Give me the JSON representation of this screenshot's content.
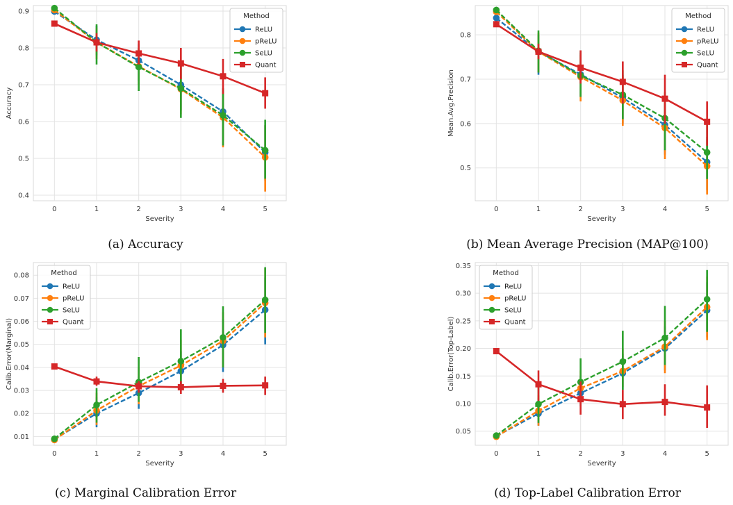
{
  "legend_title": "Method",
  "captions": {
    "a": "(a) Accuracy",
    "b": "(b) Mean Average Precision (MAP@100)",
    "c": "(c) Marginal Calibration Error",
    "d": "(d) Top-Label Calibration Error"
  },
  "colors": {
    "ReLU": "#1f77b4",
    "pReLU": "#ff7f0e",
    "SeLU": "#2ca02c",
    "Quant": "#d62728"
  },
  "chart_data": [
    {
      "type": "line",
      "panel": "a",
      "xlabel": "Severity",
      "ylabel": "Accuracy",
      "x": [
        0,
        1,
        2,
        3,
        4,
        5
      ],
      "ylim": [
        0.385,
        0.915
      ],
      "yticks": [
        0.4,
        0.5,
        0.6,
        0.7,
        0.8,
        0.9
      ],
      "grid": true,
      "legend_position": "top-right",
      "series": [
        {
          "name": "ReLU",
          "marker": "circle",
          "dashed": true,
          "values": [
            0.899,
            0.822,
            0.766,
            0.7,
            0.627,
            0.516
          ],
          "ci_low": [
            0.896,
            0.78,
            0.71,
            0.63,
            0.55,
            0.44
          ],
          "ci_high": [
            0.903,
            0.86,
            0.81,
            0.76,
            0.69,
            0.59
          ]
        },
        {
          "name": "pReLU",
          "marker": "circle",
          "dashed": true,
          "values": [
            0.903,
            0.815,
            0.75,
            0.688,
            0.611,
            0.503
          ],
          "ci_low": [
            0.9,
            0.77,
            0.7,
            0.62,
            0.53,
            0.41
          ],
          "ci_high": [
            0.907,
            0.855,
            0.8,
            0.75,
            0.68,
            0.59
          ]
        },
        {
          "name": "SeLU",
          "marker": "circle",
          "dashed": true,
          "values": [
            0.908,
            0.815,
            0.748,
            0.69,
            0.617,
            0.522
          ],
          "ci_low": [
            0.905,
            0.755,
            0.683,
            0.61,
            0.535,
            0.445
          ],
          "ci_high": [
            0.911,
            0.864,
            0.8,
            0.76,
            0.69,
            0.605
          ]
        },
        {
          "name": "Quant",
          "marker": "square",
          "dashed": false,
          "values": [
            0.866,
            0.815,
            0.785,
            0.758,
            0.723,
            0.677
          ],
          "ci_low": [
            0.863,
            0.79,
            0.755,
            0.715,
            0.675,
            0.635
          ],
          "ci_high": [
            0.869,
            0.84,
            0.82,
            0.8,
            0.77,
            0.72
          ]
        }
      ]
    },
    {
      "type": "line",
      "panel": "b",
      "xlabel": "Severity",
      "ylabel": "Mean.Avg.Precision",
      "x": [
        0,
        1,
        2,
        3,
        4,
        5
      ],
      "ylim": [
        0.426,
        0.866
      ],
      "yticks": [
        0.5,
        0.6,
        0.7,
        0.8
      ],
      "grid": true,
      "legend_position": "top-right",
      "series": [
        {
          "name": "ReLU",
          "marker": "circle",
          "dashed": true,
          "values": [
            0.838,
            0.762,
            0.711,
            0.658,
            0.597,
            0.513
          ],
          "ci_low": [
            0.835,
            0.71,
            0.66,
            0.6,
            0.53,
            0.45
          ],
          "ci_high": [
            0.841,
            0.8,
            0.76,
            0.71,
            0.65,
            0.57
          ]
        },
        {
          "name": "pReLU",
          "marker": "circle",
          "dashed": true,
          "values": [
            0.852,
            0.762,
            0.705,
            0.652,
            0.59,
            0.504
          ],
          "ci_low": [
            0.849,
            0.715,
            0.65,
            0.595,
            0.52,
            0.44
          ],
          "ci_high": [
            0.855,
            0.805,
            0.755,
            0.705,
            0.645,
            0.565
          ]
        },
        {
          "name": "SeLU",
          "marker": "circle",
          "dashed": true,
          "values": [
            0.856,
            0.764,
            0.708,
            0.665,
            0.612,
            0.535
          ],
          "ci_low": [
            0.853,
            0.715,
            0.66,
            0.61,
            0.54,
            0.475
          ],
          "ci_high": [
            0.859,
            0.81,
            0.765,
            0.72,
            0.67,
            0.6
          ]
        },
        {
          "name": "Quant",
          "marker": "square",
          "dashed": false,
          "values": [
            0.824,
            0.762,
            0.726,
            0.694,
            0.656,
            0.604
          ],
          "ci_low": [
            0.821,
            0.745,
            0.69,
            0.645,
            0.6,
            0.55
          ],
          "ci_high": [
            0.827,
            0.78,
            0.765,
            0.74,
            0.71,
            0.65
          ]
        }
      ]
    },
    {
      "type": "line",
      "panel": "c",
      "xlabel": "Severity",
      "ylabel": "Calib.Error(Marginal)",
      "x": [
        0,
        1,
        2,
        3,
        4,
        5
      ],
      "ylim": [
        0.0062,
        0.0855
      ],
      "yticks": [
        0.01,
        0.02,
        0.03,
        0.04,
        0.05,
        0.06,
        0.07,
        0.08
      ],
      "grid": true,
      "legend_position": "top-left",
      "series": [
        {
          "name": "ReLU",
          "marker": "circle",
          "dashed": true,
          "values": [
            0.0088,
            0.02,
            0.0289,
            0.0384,
            0.0497,
            0.065
          ],
          "ci_low": [
            0.0085,
            0.014,
            0.022,
            0.03,
            0.038,
            0.05
          ],
          "ci_high": [
            0.0091,
            0.027,
            0.036,
            0.047,
            0.061,
            0.079
          ]
        },
        {
          "name": "pReLU",
          "marker": "circle",
          "dashed": true,
          "values": [
            0.0085,
            0.0213,
            0.0319,
            0.0408,
            0.0515,
            0.068
          ],
          "ci_low": [
            0.0082,
            0.015,
            0.024,
            0.032,
            0.04,
            0.053
          ],
          "ci_high": [
            0.0088,
            0.029,
            0.04,
            0.052,
            0.064,
            0.083
          ]
        },
        {
          "name": "SeLU",
          "marker": "circle",
          "dashed": true,
          "values": [
            0.009,
            0.0237,
            0.0336,
            0.0427,
            0.053,
            0.0693
          ],
          "ci_low": [
            0.0087,
            0.016,
            0.025,
            0.032,
            0.04,
            0.055
          ],
          "ci_high": [
            0.0093,
            0.031,
            0.0445,
            0.0565,
            0.0665,
            0.0835
          ]
        },
        {
          "name": "Quant",
          "marker": "square",
          "dashed": false,
          "values": [
            0.0404,
            0.0339,
            0.0318,
            0.0314,
            0.032,
            0.0322
          ],
          "ci_low": [
            0.0401,
            0.032,
            0.029,
            0.0285,
            0.029,
            0.028
          ],
          "ci_high": [
            0.0407,
            0.036,
            0.034,
            0.034,
            0.035,
            0.036
          ]
        }
      ]
    },
    {
      "type": "line",
      "panel": "d",
      "xlabel": "Severity",
      "ylabel": "Calib.Error(Top-Label)",
      "x": [
        0,
        1,
        2,
        3,
        4,
        5
      ],
      "ylim": [
        0.0245,
        0.3555
      ],
      "yticks": [
        0.05,
        0.1,
        0.15,
        0.2,
        0.25,
        0.3,
        0.35
      ],
      "ytick_labels": [
        "0.05",
        "0.10",
        "0.15",
        "0.20",
        "0.25",
        "0.30",
        "0.35"
      ],
      "grid": true,
      "legend_position": "top-left",
      "series": [
        {
          "name": "ReLU",
          "marker": "circle",
          "dashed": true,
          "values": [
            0.041,
            0.082,
            0.119,
            0.155,
            0.2,
            0.269
          ],
          "ci_low": [
            0.039,
            0.06,
            0.095,
            0.125,
            0.16,
            0.22
          ],
          "ci_high": [
            0.043,
            0.11,
            0.15,
            0.19,
            0.24,
            0.32
          ]
        },
        {
          "name": "pReLU",
          "marker": "circle",
          "dashed": true,
          "values": [
            0.04,
            0.087,
            0.128,
            0.159,
            0.203,
            0.275
          ],
          "ci_low": [
            0.038,
            0.06,
            0.1,
            0.13,
            0.155,
            0.215
          ],
          "ci_high": [
            0.042,
            0.115,
            0.16,
            0.2,
            0.25,
            0.33
          ]
        },
        {
          "name": "SeLU",
          "marker": "circle",
          "dashed": true,
          "values": [
            0.042,
            0.099,
            0.139,
            0.176,
            0.219,
            0.289
          ],
          "ci_low": [
            0.04,
            0.065,
            0.105,
            0.125,
            0.17,
            0.23
          ],
          "ci_high": [
            0.044,
            0.135,
            0.182,
            0.232,
            0.277,
            0.342
          ]
        },
        {
          "name": "Quant",
          "marker": "square",
          "dashed": false,
          "values": [
            0.195,
            0.135,
            0.108,
            0.099,
            0.103,
            0.093
          ],
          "ci_low": [
            0.192,
            0.105,
            0.08,
            0.072,
            0.078,
            0.056
          ],
          "ci_high": [
            0.198,
            0.16,
            0.14,
            0.125,
            0.135,
            0.133
          ]
        }
      ]
    }
  ]
}
